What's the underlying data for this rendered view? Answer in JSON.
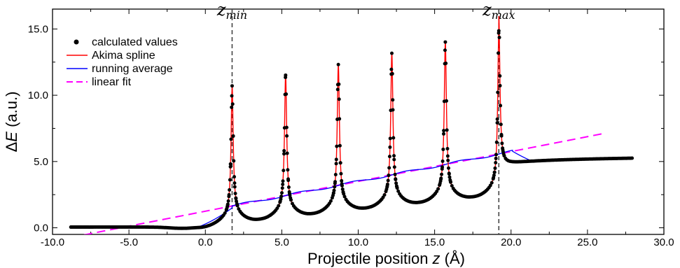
{
  "chart_data": {
    "type": "line",
    "xlabel_prefix": "Projectile position ",
    "xlabel_var": "z",
    "xlabel_suffix": " (Å)",
    "ylabel_prefix": "Δ",
    "ylabel_var": "E",
    "ylabel_suffix": " (a.u.)",
    "xlim": [
      -10.0,
      30.0
    ],
    "ylim": [
      -0.5,
      16.5
    ],
    "x_ticks": [
      "-10.0",
      "-5.0",
      "0.0",
      "5.0",
      "10.0",
      "15.0",
      "20.0",
      "25.0",
      "30.0"
    ],
    "y_ticks": [
      "0.0",
      "5.0",
      "10.0",
      "15.0"
    ],
    "x_tick_values": [
      -10,
      -5,
      0,
      5,
      10,
      15,
      20,
      25,
      30
    ],
    "y_tick_values": [
      0,
      5,
      10,
      15
    ],
    "grid": false,
    "legend_position": "top-left",
    "vertical_markers": [
      {
        "x": 1.75,
        "label": "z",
        "sub": "min"
      },
      {
        "x": 19.2,
        "label": "z",
        "sub": "max"
      }
    ],
    "peaks": [
      {
        "x": 1.75,
        "height": 10.7
      },
      {
        "x": 5.25,
        "height": 11.5
      },
      {
        "x": 8.7,
        "height": 12.3
      },
      {
        "x": 12.2,
        "height": 13.15
      },
      {
        "x": 15.7,
        "height": 14.0
      },
      {
        "x": 19.2,
        "height": 14.85
      }
    ],
    "series": [
      {
        "name": "calculated values",
        "style": "dots",
        "color": "#000000"
      },
      {
        "name": "Akima spline",
        "style": "line",
        "color": "#ff0000"
      },
      {
        "name": "running average",
        "style": "line",
        "color": "#0000ff"
      },
      {
        "name": "linear fit",
        "style": "dashed",
        "color": "#ff00ff",
        "x_range": [
          -8.8,
          26.0
        ],
        "y_range": [
          -0.73,
          7.1
        ]
      }
    ],
    "data_x_range": [
      -8.8,
      28.0
    ]
  }
}
